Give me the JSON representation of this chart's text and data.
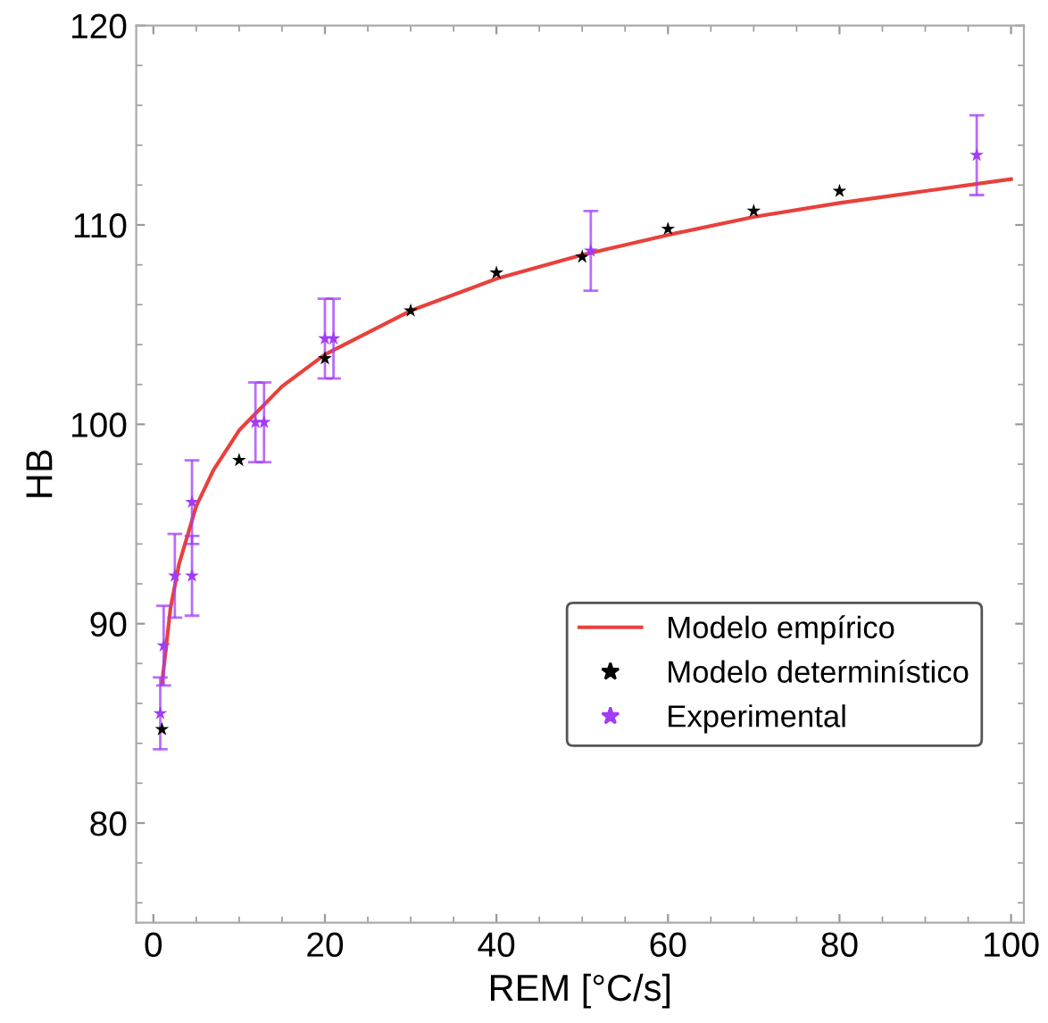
{
  "chart_data": {
    "type": "scatter",
    "xlabel": "REM [°C/s]",
    "ylabel": "HB",
    "xlim": [
      -2,
      101.5
    ],
    "ylim": [
      75,
      120
    ],
    "xticks": [
      0,
      20,
      40,
      60,
      80,
      100
    ],
    "yticks": [
      80,
      90,
      100,
      110,
      120
    ],
    "grid": false,
    "legend": "bottom right",
    "series": [
      {
        "name": "Modelo empírico",
        "type": "line",
        "color": "#e8413c",
        "marker": "none",
        "line_style": "solid",
        "x": [
          1,
          2,
          3,
          5,
          7,
          10,
          15,
          20,
          30,
          40,
          50,
          60,
          70,
          80,
          90,
          100
        ],
        "values": [
          87,
          90.8,
          93.0,
          95.9,
          97.7,
          99.7,
          101.9,
          103.5,
          105.7,
          107.3,
          108.5,
          109.5,
          110.4,
          111.1,
          111.7,
          112.3
        ]
      },
      {
        "name": "Modelo determinístico",
        "color": "#000000",
        "marker": "star",
        "x": [
          1,
          10,
          20,
          30,
          40,
          50,
          60,
          70,
          80
        ],
        "values": [
          84.7,
          98.2,
          103.3,
          105.7,
          107.6,
          108.4,
          109.8,
          110.7,
          111.7
        ]
      },
      {
        "name": "Experimental",
        "color": "#a23cf5",
        "marker": "star",
        "x": [
          0.8,
          1.2,
          2.5,
          4.5,
          4.5,
          11.9,
          12.9,
          20,
          21,
          51,
          96
        ],
        "values": [
          85.5,
          88.9,
          92.4,
          92.4,
          96.1,
          100.1,
          100.1,
          104.3,
          104.3,
          108.7,
          113.5
        ],
        "errors": [
          1.8,
          2,
          2.1,
          2,
          2.1,
          2,
          2,
          2,
          2,
          2,
          2
        ]
      }
    ]
  }
}
